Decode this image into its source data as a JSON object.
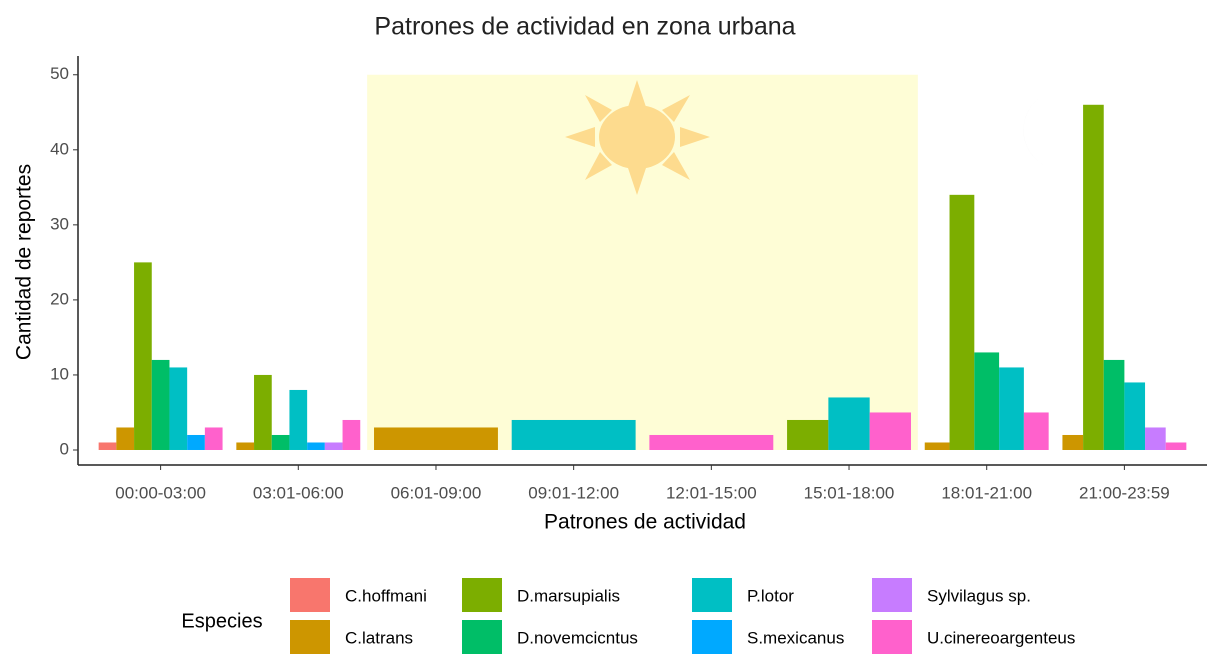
{
  "chart_data": {
    "type": "bar",
    "title": "Patrones de actividad en zona urbana",
    "x_label": "Patrones de actividad",
    "y_label": "Cantidad de reportes",
    "legend_title": "Especies",
    "categories": [
      "00:00-03:00",
      "03:01-06:00",
      "06:01-09:00",
      "09:01-12:00",
      "12:01-15:00",
      "15:01-18:00",
      "18:01-21:00",
      "21:00-23:59"
    ],
    "series": [
      {
        "name": "C.hoffmani",
        "color": "#F8766D",
        "values": [
          1,
          null,
          null,
          null,
          null,
          null,
          null,
          null
        ]
      },
      {
        "name": "C.latrans",
        "color": "#CD9600",
        "values": [
          3,
          1,
          3,
          null,
          null,
          null,
          1,
          2
        ]
      },
      {
        "name": "D.marsupialis",
        "color": "#7CAE00",
        "values": [
          25,
          10,
          null,
          null,
          null,
          4,
          34,
          46
        ]
      },
      {
        "name": "D.novemcicntus",
        "color": "#00BE67",
        "values": [
          12,
          2,
          null,
          null,
          null,
          null,
          13,
          12
        ]
      },
      {
        "name": "P.lotor",
        "color": "#00BFC4",
        "values": [
          11,
          8,
          null,
          4,
          null,
          7,
          11,
          9
        ]
      },
      {
        "name": "S.mexicanus",
        "color": "#00A9FF",
        "values": [
          2,
          1,
          null,
          null,
          null,
          null,
          null,
          null
        ]
      },
      {
        "name": "Sylvilagus sp.",
        "color": "#C77CFF",
        "values": [
          null,
          1,
          null,
          null,
          null,
          null,
          null,
          3
        ]
      },
      {
        "name": "U.cinereoargenteus",
        "color": "#FF61CC",
        "values": [
          3,
          4,
          null,
          null,
          2,
          5,
          5,
          1
        ]
      }
    ],
    "ylim": [
      -2,
      52.5
    ],
    "yticks": [
      0,
      10,
      20,
      30,
      40,
      50
    ]
  }
}
